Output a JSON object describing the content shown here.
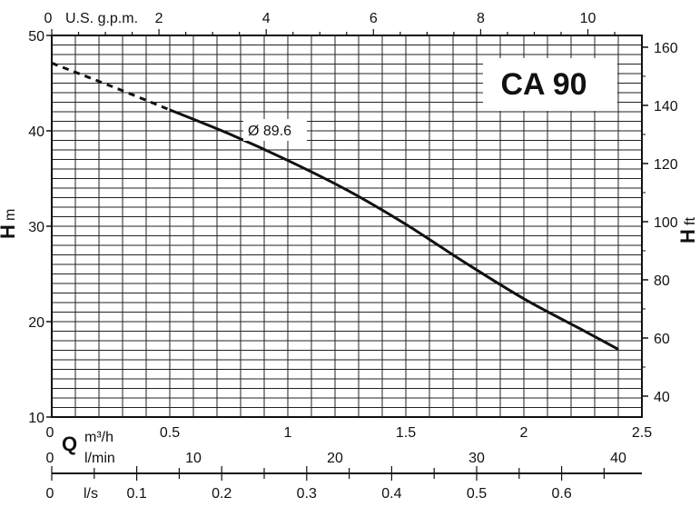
{
  "chart_data": {
    "type": "line",
    "model_label": "CA 90",
    "curve_label": "Ø 89.6",
    "y_left": {
      "label_main": "H",
      "label_unit": "m",
      "range": [
        10,
        50
      ],
      "ticks": [
        10,
        20,
        30,
        40,
        50
      ]
    },
    "y_right": {
      "label_main": "H",
      "label_unit": "ft",
      "ticks": [
        40,
        60,
        80,
        100,
        120,
        140,
        160
      ]
    },
    "x_top": {
      "label": "U.S. g.p.m.",
      "ticks": [
        0,
        2,
        4,
        6,
        8,
        10
      ]
    },
    "x_bottom": {
      "label_main": "Q",
      "label_unit": "m³/h",
      "range": [
        0,
        2.5
      ],
      "ticks": [
        "0.5",
        "1",
        "1.5",
        "2",
        "2.5"
      ]
    },
    "x_lmin": {
      "label": "l/min",
      "ticks": [
        0,
        10,
        20,
        30,
        40
      ]
    },
    "x_ls": {
      "label": "l/s",
      "ticks": [
        "0",
        "0.1",
        "0.2",
        "0.3",
        "0.4",
        "0.5",
        "0.6"
      ]
    },
    "grid": true,
    "series": [
      {
        "name": "Ø 89.6",
        "style": "dashed",
        "x": [
          0,
          0.25,
          0.5
        ],
        "y": [
          47.1,
          44.7,
          42.2
        ]
      },
      {
        "name": "Ø 89.6",
        "style": "solid",
        "x": [
          0.5,
          0.75,
          1.0,
          1.25,
          1.5,
          1.75,
          2.0,
          2.25,
          2.4
        ],
        "y": [
          42.2,
          39.7,
          36.9,
          33.8,
          30.2,
          26.2,
          22.4,
          19.1,
          17.1
        ]
      }
    ]
  }
}
